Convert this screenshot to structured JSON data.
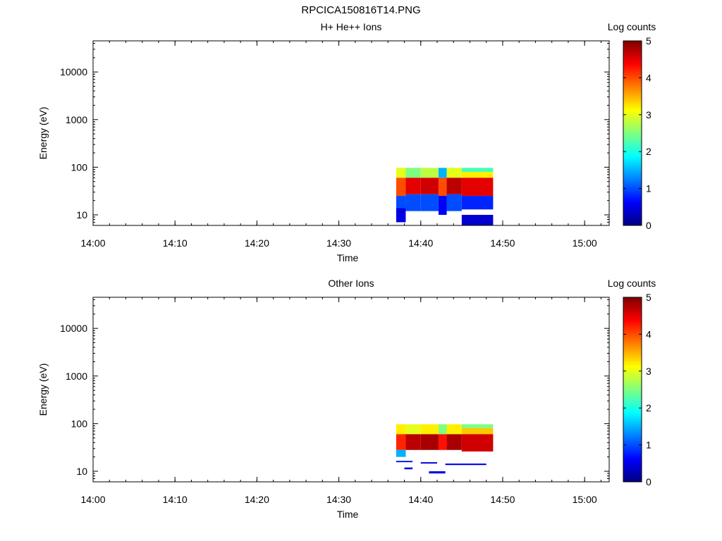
{
  "title": "RPCICA150816T14.PNG",
  "colors": {
    "colormap": [
      "#00007f",
      "#0000ff",
      "#007fff",
      "#00ffff",
      "#7fff7f",
      "#ffff00",
      "#ff7f00",
      "#ff0000",
      "#7f0000"
    ]
  },
  "chart_data": [
    {
      "type": "heatmap",
      "title": "H+ He++ Ions",
      "xlabel": "Time",
      "ylabel": "Energy (eV)",
      "colorbar_label": "Log counts",
      "colorbar_ticks": [
        "0",
        "1",
        "2",
        "3",
        "4",
        "5"
      ],
      "clim": [
        0,
        5
      ],
      "xlim": [
        "14:00",
        "15:03"
      ],
      "x_ticks": [
        "14:00",
        "14:10",
        "14:20",
        "14:30",
        "14:40",
        "14:50",
        "15:00"
      ],
      "y_scale": "log",
      "ylim": [
        6,
        45000
      ],
      "y_ticks": [
        "10",
        "100",
        "1000",
        "10000"
      ],
      "cells": [
        {
          "t0": "14:37:00",
          "t1": "14:38:10",
          "e0": 60,
          "e1": 97,
          "v": 3.0
        },
        {
          "t0": "14:37:00",
          "t1": "14:38:10",
          "e0": 25,
          "e1": 60,
          "v": 4.0
        },
        {
          "t0": "14:37:00",
          "t1": "14:38:10",
          "e0": 14,
          "e1": 25,
          "v": 1.0
        },
        {
          "t0": "14:37:00",
          "t1": "14:38:10",
          "e0": 7,
          "e1": 14,
          "v": 0.5
        },
        {
          "t0": "14:38:10",
          "t1": "14:40:00",
          "e0": 60,
          "e1": 97,
          "v": 2.5
        },
        {
          "t0": "14:38:10",
          "t1": "14:40:00",
          "e0": 27,
          "e1": 60,
          "v": 4.5
        },
        {
          "t0": "14:38:10",
          "t1": "14:40:00",
          "e0": 12,
          "e1": 27,
          "v": 1.0
        },
        {
          "t0": "14:40:00",
          "t1": "14:42:10",
          "e0": 60,
          "e1": 97,
          "v": 2.8
        },
        {
          "t0": "14:40:00",
          "t1": "14:42:10",
          "e0": 27,
          "e1": 60,
          "v": 4.6
        },
        {
          "t0": "14:40:00",
          "t1": "14:42:10",
          "e0": 12,
          "e1": 27,
          "v": 1.0
        },
        {
          "t0": "14:42:10",
          "t1": "14:43:10",
          "e0": 60,
          "e1": 97,
          "v": 1.5
        },
        {
          "t0": "14:42:10",
          "t1": "14:43:10",
          "e0": 25,
          "e1": 60,
          "v": 4.0
        },
        {
          "t0": "14:42:10",
          "t1": "14:43:10",
          "e0": 10,
          "e1": 25,
          "v": 0.6
        },
        {
          "t0": "14:43:10",
          "t1": "14:45:00",
          "e0": 60,
          "e1": 97,
          "v": 3.0
        },
        {
          "t0": "14:43:10",
          "t1": "14:45:00",
          "e0": 27,
          "e1": 60,
          "v": 4.7
        },
        {
          "t0": "14:43:10",
          "t1": "14:45:00",
          "e0": 12,
          "e1": 27,
          "v": 1.0
        },
        {
          "t0": "14:45:00",
          "t1": "14:48:50",
          "e0": 80,
          "e1": 97,
          "v": 2.2
        },
        {
          "t0": "14:45:00",
          "t1": "14:48:50",
          "e0": 60,
          "e1": 80,
          "v": 3.2
        },
        {
          "t0": "14:45:00",
          "t1": "14:48:50",
          "e0": 25,
          "e1": 60,
          "v": 4.5
        },
        {
          "t0": "14:45:00",
          "t1": "14:48:50",
          "e0": 13,
          "e1": 25,
          "v": 0.8
        },
        {
          "t0": "14:45:00",
          "t1": "14:48:50",
          "e0": 6,
          "e1": 10,
          "v": 0.4
        }
      ]
    },
    {
      "type": "heatmap",
      "title": "Other Ions",
      "xlabel": "Time",
      "ylabel": "Energy (eV)",
      "colorbar_label": "Log counts",
      "colorbar_ticks": [
        "0",
        "1",
        "2",
        "3",
        "4",
        "5"
      ],
      "clim": [
        0,
        5
      ],
      "xlim": [
        "14:00",
        "15:03"
      ],
      "x_ticks": [
        "14:00",
        "14:10",
        "14:20",
        "14:30",
        "14:40",
        "14:50",
        "15:00"
      ],
      "y_scale": "log",
      "ylim": [
        6,
        45000
      ],
      "y_ticks": [
        "10",
        "100",
        "1000",
        "10000"
      ],
      "cells": [
        {
          "t0": "14:37:00",
          "t1": "14:38:10",
          "e0": 60,
          "e1": 97,
          "v": 3.2
        },
        {
          "t0": "14:37:00",
          "t1": "14:38:10",
          "e0": 28,
          "e1": 60,
          "v": 4.2
        },
        {
          "t0": "14:37:00",
          "t1": "14:38:10",
          "e0": 20,
          "e1": 28,
          "v": 1.5
        },
        {
          "t0": "14:38:10",
          "t1": "14:40:00",
          "e0": 60,
          "e1": 97,
          "v": 3.0
        },
        {
          "t0": "14:38:10",
          "t1": "14:40:00",
          "e0": 28,
          "e1": 60,
          "v": 4.7
        },
        {
          "t0": "14:40:00",
          "t1": "14:42:10",
          "e0": 60,
          "e1": 97,
          "v": 3.2
        },
        {
          "t0": "14:40:00",
          "t1": "14:42:10",
          "e0": 28,
          "e1": 60,
          "v": 4.8
        },
        {
          "t0": "14:42:10",
          "t1": "14:43:10",
          "e0": 60,
          "e1": 97,
          "v": 2.5
        },
        {
          "t0": "14:42:10",
          "t1": "14:43:10",
          "e0": 28,
          "e1": 60,
          "v": 4.3
        },
        {
          "t0": "14:43:10",
          "t1": "14:45:00",
          "e0": 60,
          "e1": 97,
          "v": 3.2
        },
        {
          "t0": "14:43:10",
          "t1": "14:45:00",
          "e0": 28,
          "e1": 60,
          "v": 4.8
        },
        {
          "t0": "14:45:00",
          "t1": "14:48:50",
          "e0": 80,
          "e1": 97,
          "v": 2.5
        },
        {
          "t0": "14:45:00",
          "t1": "14:48:50",
          "e0": 60,
          "e1": 80,
          "v": 3.4
        },
        {
          "t0": "14:45:00",
          "t1": "14:48:50",
          "e0": 26,
          "e1": 60,
          "v": 4.6
        },
        {
          "t0": "14:37:00",
          "t1": "14:39:00",
          "e0": 15.5,
          "e1": 16.5,
          "v": 0.5
        },
        {
          "t0": "14:40:00",
          "t1": "14:42:00",
          "e0": 14.5,
          "e1": 15.5,
          "v": 0.5
        },
        {
          "t0": "14:43:00",
          "t1": "14:48:00",
          "e0": 13.5,
          "e1": 14.5,
          "v": 0.5
        },
        {
          "t0": "14:38:00",
          "t1": "14:39:00",
          "e0": 11,
          "e1": 12,
          "v": 0.5
        },
        {
          "t0": "14:41:00",
          "t1": "14:43:00",
          "e0": 9,
          "e1": 10,
          "v": 0.5
        }
      ]
    }
  ]
}
